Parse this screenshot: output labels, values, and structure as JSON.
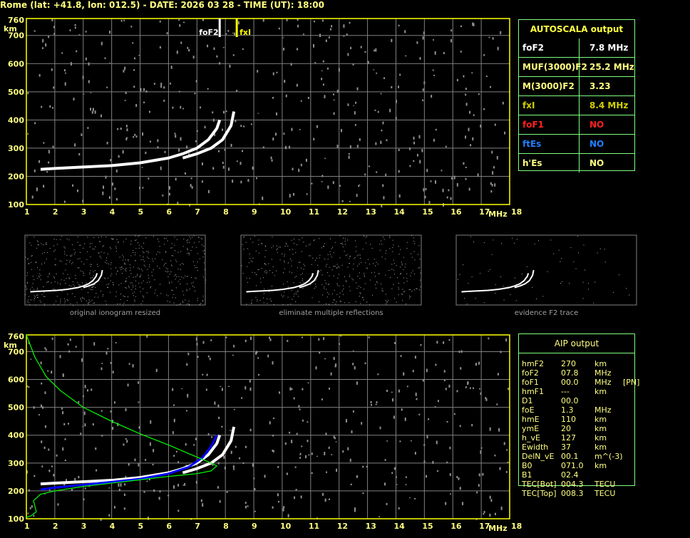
{
  "header": {
    "title": "Rome (lat: +41.8, lon: 012.5) - DATE: 2026 03 28 - TIME (UT): 18:00"
  },
  "colors": {
    "axis": "#ffff00",
    "grid": "#808080",
    "trace": "#ffffff",
    "profile": "#00ff00",
    "aip_trace": "#0000ff",
    "table_border": "#80ff80"
  },
  "autoscala": {
    "title": "AUTOSCALA output",
    "rows": [
      {
        "label": "foF2",
        "value": "7.8 MHz",
        "color": "#ffffff"
      },
      {
        "label": "MUF(3000)F2",
        "value": "25.2 MHz",
        "color": "#ffff80"
      },
      {
        "label": "M(3000)F2",
        "value": "3.23",
        "color": "#ffff80"
      },
      {
        "label": "fxI",
        "value": "8.4 MHz",
        "color": "#d0d000"
      },
      {
        "label": "foF1",
        "value": "NO",
        "color": "#ff2020"
      },
      {
        "label": "ftEs",
        "value": "NO",
        "color": "#2080ff"
      },
      {
        "label": "h'Es",
        "value": "NO",
        "color": "#ffff80"
      }
    ]
  },
  "aip": {
    "title": "AIP output",
    "rows": [
      [
        "hmF2",
        "270",
        "km",
        ""
      ],
      [
        "foF2",
        "07.8",
        "MHz",
        ""
      ],
      [
        "foF1",
        "00.0",
        "MHz",
        "[PN]"
      ],
      [
        "hmF1",
        "---",
        "km",
        ""
      ],
      [
        "D1",
        "00.0",
        "",
        ""
      ],
      [
        "foE",
        "1.3",
        "MHz",
        ""
      ],
      [
        "hmE",
        "110",
        "km",
        ""
      ],
      [
        "ymE",
        "20",
        "km",
        ""
      ],
      [
        "h_vE",
        "127",
        "km",
        ""
      ],
      [
        "Ewidth",
        "37",
        "km",
        ""
      ],
      [
        "DelN_vE",
        "00.1",
        "m^(-3)",
        ""
      ],
      [
        "B0",
        "071.0",
        "km",
        ""
      ],
      [
        "B1",
        "02.4",
        "",
        ""
      ],
      [
        "TEC[Bot]",
        "004.3",
        "TECU",
        ""
      ],
      [
        "TEC[Top]",
        "008.3",
        "TECU",
        ""
      ]
    ]
  },
  "thumbnails": [
    {
      "caption": "original ionogram resized"
    },
    {
      "caption": "eliminate multiple reflections"
    },
    {
      "caption": "evidence F2 trace"
    }
  ],
  "chart_data": [
    {
      "type": "scatter",
      "xlabel": "MHz",
      "ylabel": "km",
      "xlim": [
        1,
        18
      ],
      "ylim": [
        100,
        760
      ],
      "xticks": [
        "1",
        "2",
        "3",
        "4",
        "5",
        "6",
        "7",
        "8",
        "9",
        "10",
        "11",
        "12",
        "13",
        "14",
        "15",
        "16",
        "17",
        "18"
      ],
      "yticks": [
        "100",
        "200",
        "300",
        "400",
        "500",
        "600",
        "700",
        "760"
      ],
      "grid": true,
      "markers": [
        {
          "label": "foF2",
          "x": 7.8,
          "color": "#ffffff"
        },
        {
          "label": "fxI",
          "x": 8.4,
          "color": "#ffff00"
        }
      ],
      "series": [
        {
          "color": "#ffffff",
          "points": [
            [
              1.5,
              225
            ],
            [
              2,
              228
            ],
            [
              3,
              233
            ],
            [
              4,
              238
            ],
            [
              5,
              248
            ],
            [
              6,
              265
            ],
            [
              6.5,
              280
            ],
            [
              7,
              300
            ],
            [
              7.4,
              330
            ],
            [
              7.7,
              370
            ],
            [
              7.8,
              400
            ]
          ]
        },
        {
          "color": "#ffffff",
          "points": [
            [
              6.5,
              265
            ],
            [
              7,
              280
            ],
            [
              7.5,
              300
            ],
            [
              7.9,
              330
            ],
            [
              8.2,
              380
            ],
            [
              8.3,
              430
            ]
          ]
        }
      ]
    },
    {
      "type": "line",
      "xlabel": "MHz",
      "ylabel": "km",
      "xlim": [
        1,
        18
      ],
      "ylim": [
        100,
        760
      ],
      "xticks": [
        "1",
        "2",
        "3",
        "4",
        "5",
        "6",
        "7",
        "8",
        "9",
        "10",
        "11",
        "12",
        "13",
        "14",
        "15",
        "16",
        "17",
        "18"
      ],
      "yticks": [
        "100",
        "200",
        "300",
        "400",
        "500",
        "600",
        "700",
        "760"
      ],
      "grid": true,
      "series": [
        {
          "color": "#ffffff",
          "points": [
            [
              1.5,
              225
            ],
            [
              2,
              228
            ],
            [
              3,
              233
            ],
            [
              4,
              238
            ],
            [
              5,
              248
            ],
            [
              6,
              265
            ],
            [
              6.5,
              280
            ],
            [
              7,
              300
            ],
            [
              7.4,
              330
            ],
            [
              7.7,
              370
            ],
            [
              7.8,
              400
            ]
          ]
        },
        {
          "color": "#ffffff",
          "points": [
            [
              6.5,
              265
            ],
            [
              7,
              280
            ],
            [
              7.5,
              300
            ],
            [
              7.9,
              330
            ],
            [
              8.2,
              380
            ],
            [
              8.3,
              430
            ]
          ]
        },
        {
          "color": "#0000ff",
          "points": [
            [
              1.5,
              205
            ],
            [
              2,
              212
            ],
            [
              3,
              222
            ],
            [
              4,
              232
            ],
            [
              5,
              243
            ],
            [
              6,
              262
            ],
            [
              6.7,
              285
            ],
            [
              7.2,
              320
            ],
            [
              7.5,
              360
            ],
            [
              7.7,
              400
            ]
          ]
        },
        {
          "color": "#00ff00",
          "points": [
            [
              1,
              760
            ],
            [
              1.3,
              680
            ],
            [
              1.7,
              610
            ],
            [
              2.2,
              560
            ],
            [
              3,
              500
            ],
            [
              4,
              450
            ],
            [
              5,
              405
            ],
            [
              6,
              365
            ],
            [
              6.8,
              330
            ],
            [
              7.5,
              300
            ],
            [
              7.7,
              290
            ],
            [
              7.5,
              272
            ],
            [
              7,
              262
            ],
            [
              6,
              252
            ],
            [
              5,
              240
            ],
            [
              4,
              228
            ],
            [
              3,
              216
            ],
            [
              2,
              200
            ],
            [
              1.5,
              188
            ],
            [
              1.25,
              165
            ],
            [
              1.35,
              125
            ],
            [
              1.15,
              110
            ],
            [
              1,
              105
            ]
          ]
        }
      ]
    }
  ]
}
